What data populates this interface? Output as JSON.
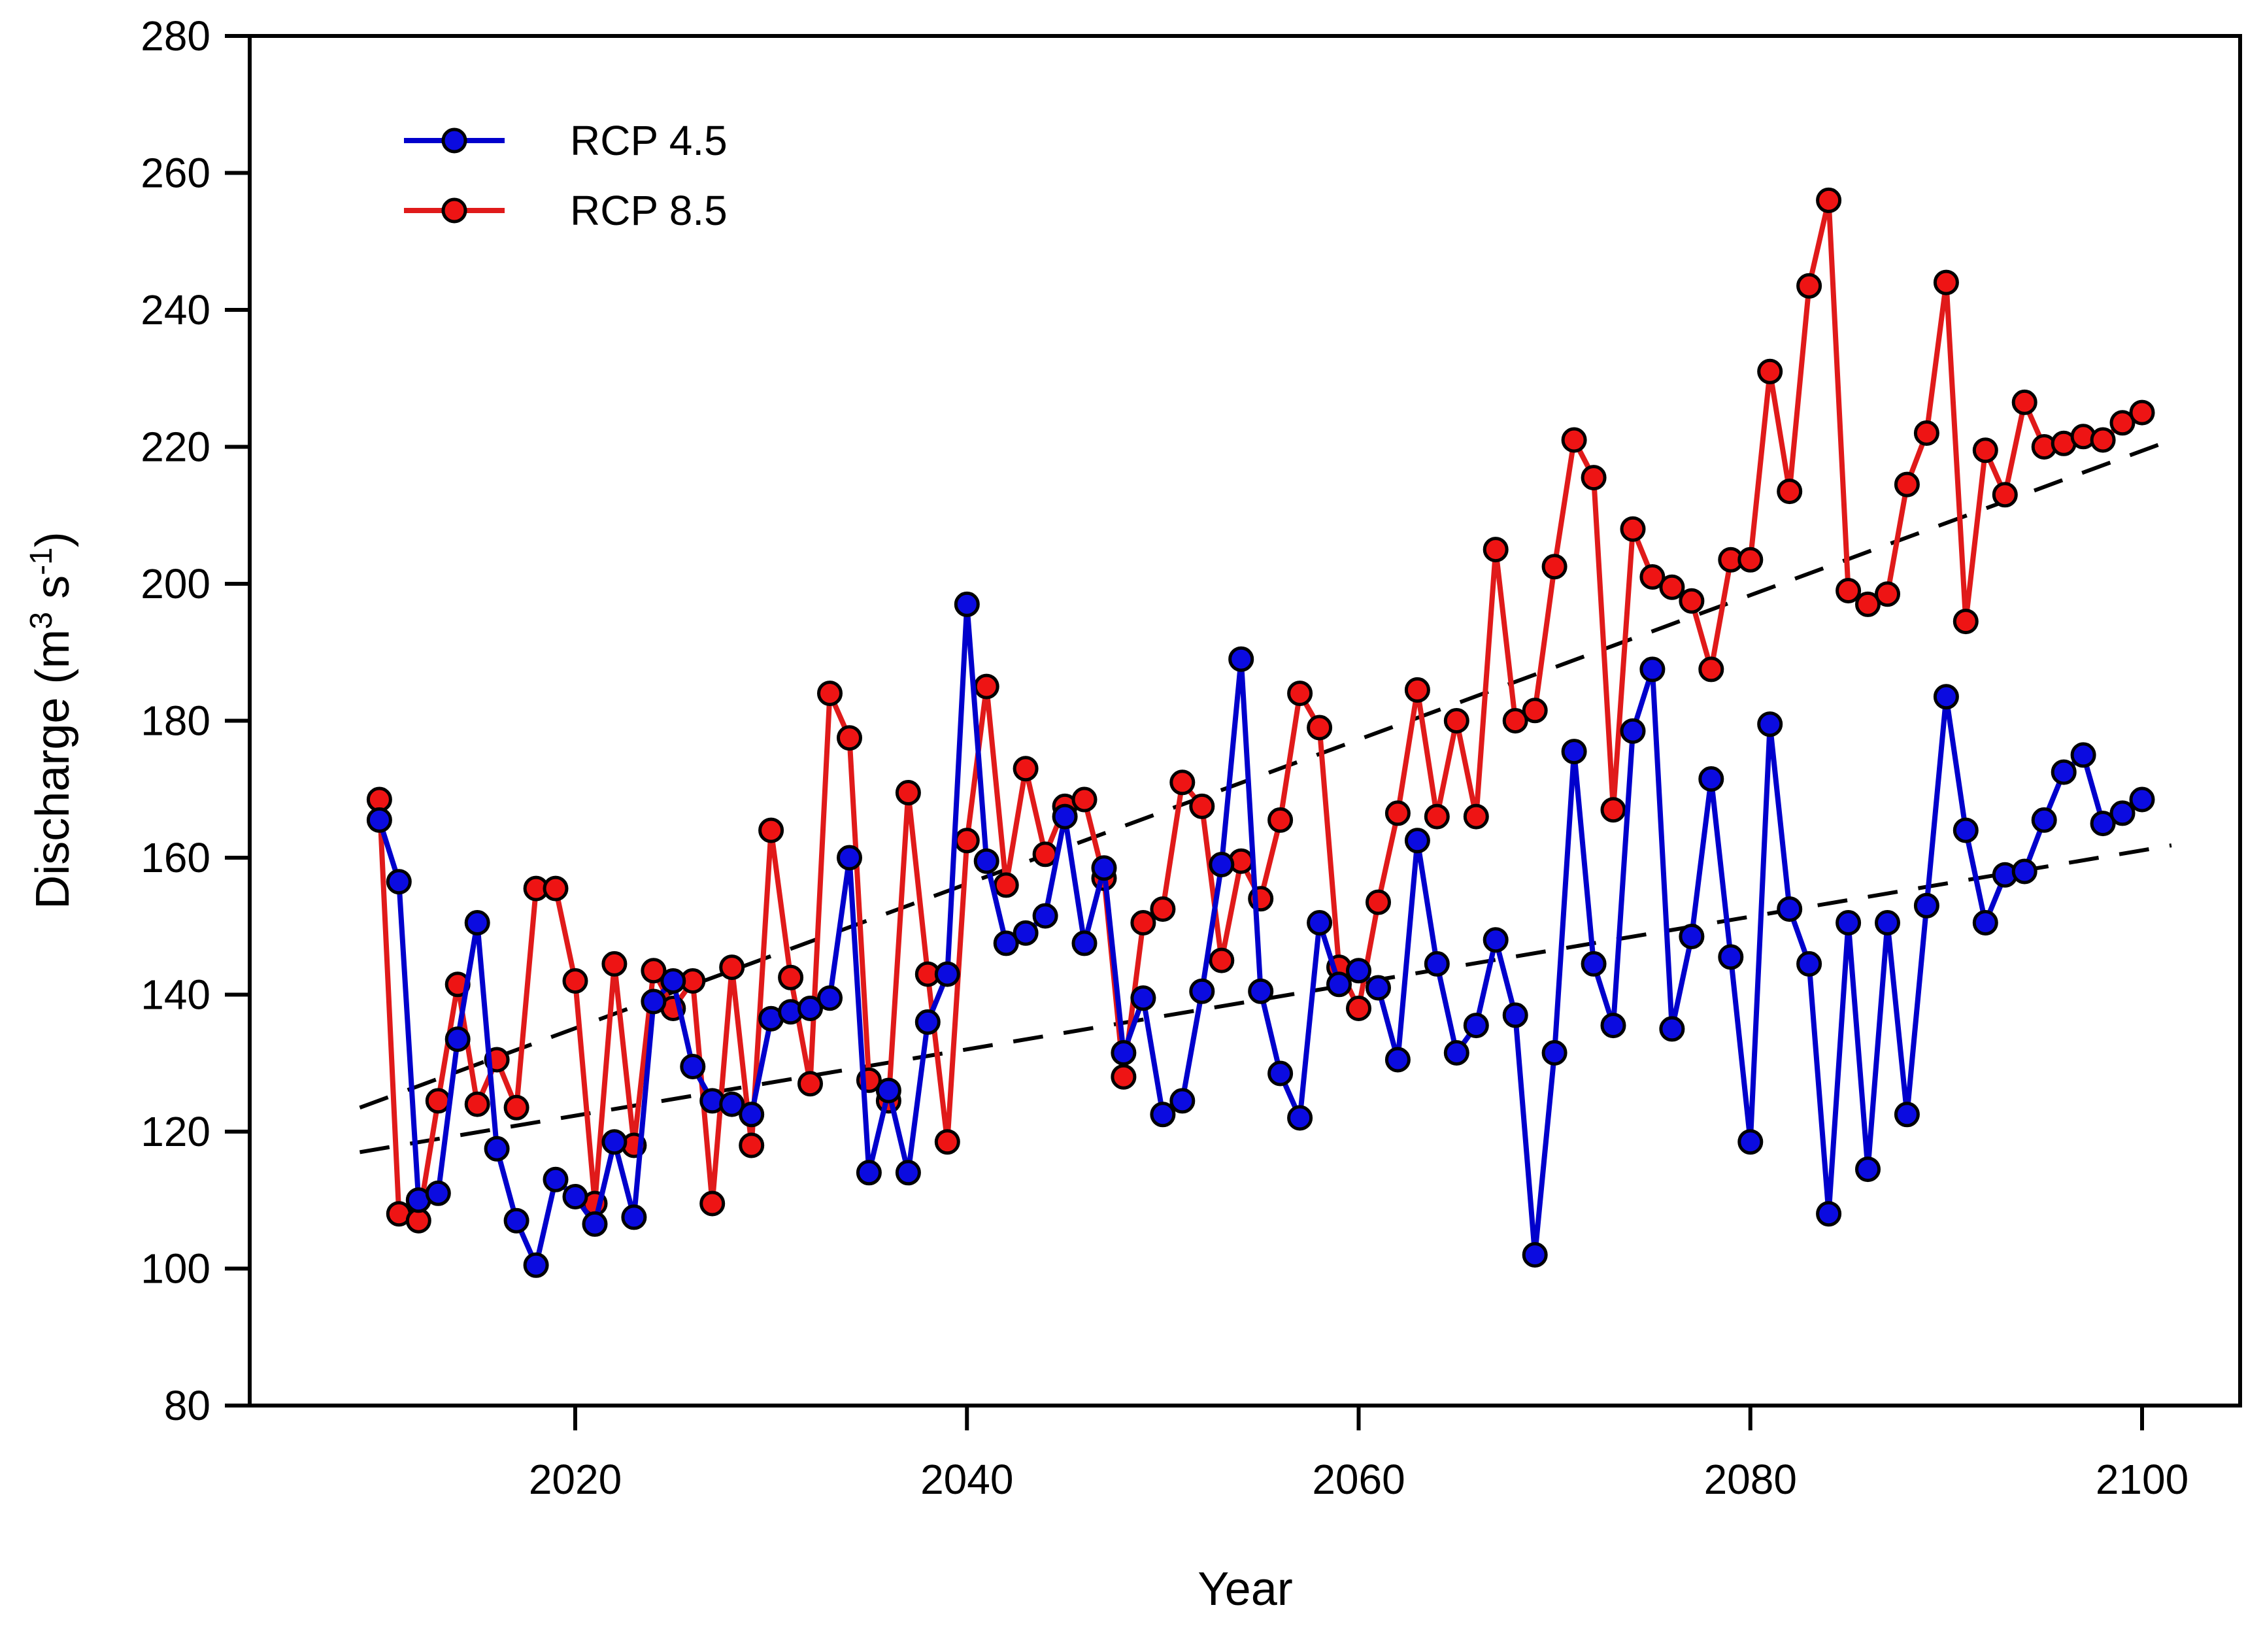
{
  "chart_data": {
    "type": "line",
    "title": "",
    "xlabel": "Year",
    "ylabel_plain": "Discharge (m3 s-1)",
    "ylabel_segments": [
      {
        "t": "Discharge (m",
        "sup": false
      },
      {
        "t": "3",
        "sup": true
      },
      {
        "t": " s",
        "sup": false
      },
      {
        "t": "-1",
        "sup": true
      },
      {
        "t": ")",
        "sup": false
      }
    ],
    "xlim": [
      2004.0,
      2105.5
    ],
    "ylim": [
      80,
      280
    ],
    "x_ticks": [
      2020,
      2040,
      2060,
      2080,
      2100
    ],
    "y_ticks": [
      80,
      100,
      120,
      140,
      160,
      180,
      200,
      220,
      240,
      260,
      280
    ],
    "grid": false,
    "legend_position": "top-left-inside",
    "x_start": 2010,
    "x_step": 1,
    "series": [
      {
        "name": "RCP 8.5",
        "line_color": "#e01a1a",
        "marker_fill": "#ee1414",
        "marker_edge": "#000000",
        "values": [
          168.5,
          108,
          107,
          124.5,
          141.5,
          124,
          130.5,
          123.5,
          155.5,
          155.5,
          142,
          109.5,
          144.5,
          118,
          143.5,
          138,
          142,
          109.5,
          144,
          118,
          164,
          142.5,
          127,
          184,
          177.5,
          127.5,
          124.5,
          169.5,
          143,
          118.5,
          162.5,
          185,
          156,
          173,
          160.5,
          167.5,
          168.5,
          157,
          128,
          150.5,
          152.5,
          171,
          167.5,
          145,
          159.5,
          154,
          165.5,
          184,
          179,
          144,
          138,
          153.5,
          166.5,
          184.5,
          166,
          180,
          166,
          205,
          180,
          181.5,
          202.5,
          221,
          215.5,
          167,
          208,
          201,
          199.5,
          197.5,
          187.5,
          203.5,
          203.5,
          231,
          213.5,
          243.5,
          256,
          199,
          197,
          198.5,
          214.5,
          222,
          244,
          194.5,
          219.5,
          213,
          226.5,
          220,
          220.5,
          221.5,
          221,
          223.5,
          225
        ]
      },
      {
        "name": "RCP 4.5",
        "line_color": "#0000cc",
        "marker_fill": "#0b0be0",
        "marker_edge": "#000000",
        "values": [
          165.5,
          156.5,
          110,
          111,
          133.5,
          150.5,
          117.5,
          107,
          100.5,
          113,
          110.5,
          106.5,
          118.5,
          107.5,
          139,
          142,
          129.5,
          124.5,
          124,
          122.5,
          136.5,
          137.5,
          138,
          139.5,
          160,
          114,
          126,
          114,
          136,
          143,
          197,
          159.5,
          147.5,
          149,
          151.5,
          166,
          147.5,
          158.5,
          131.5,
          139.5,
          122.5,
          124.5,
          140.5,
          159,
          189,
          140.5,
          128.5,
          122,
          150.5,
          141.5,
          143.5,
          141,
          130.5,
          162.5,
          144.5,
          131.5,
          135.5,
          148,
          137,
          102,
          131.5,
          175.5,
          144.5,
          135.5,
          178.5,
          187.5,
          135,
          148.5,
          171.5,
          145.5,
          118.5,
          179.5,
          152.5,
          144.5,
          108,
          150.5,
          114.5,
          150.5,
          122.5,
          153,
          183.5,
          164,
          150.5,
          157.5,
          158,
          165.5,
          172.5,
          175,
          165,
          166.5,
          168.5
        ]
      }
    ],
    "legend_entries": [
      {
        "label": "RCP 4.5",
        "line_color": "#0000cc",
        "marker_fill": "#0b0be0"
      },
      {
        "label": "RCP 8.5",
        "line_color": "#e01a1a",
        "marker_fill": "#ee1414"
      }
    ],
    "trend_lines": [
      {
        "series": "RCP 4.5",
        "x1": 2009.0,
        "y1": 117.0,
        "x2": 2101.5,
        "y2": 161.8,
        "color": "#000000",
        "style": "dashed"
      },
      {
        "series": "RCP 8.5",
        "x1": 2009.0,
        "y1": 123.5,
        "x2": 2101.5,
        "y2": 221.0,
        "color": "#000000",
        "style": "dashed"
      }
    ]
  }
}
